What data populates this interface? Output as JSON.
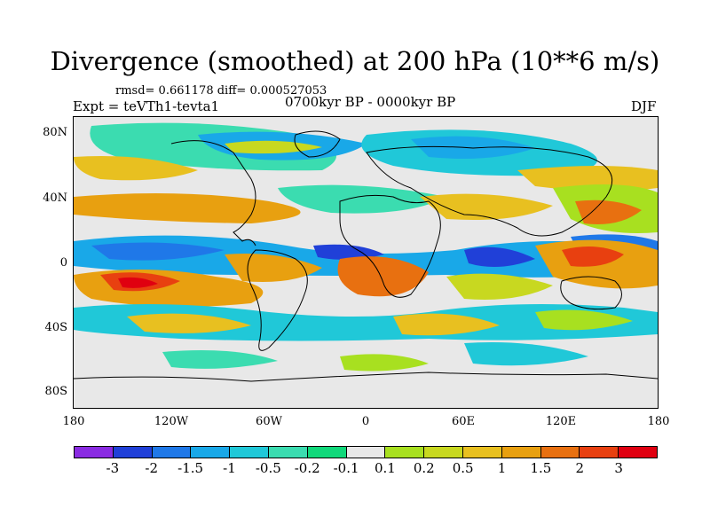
{
  "title": "Divergence (smoothed) at 200 hPa (10**6 m/s)",
  "stats_line": "rmsd= 0.661178 diff= 0.000527053",
  "experiment": "Expt = teVTh1-tevta1",
  "period": "0700kyr BP - 0000kyr BP",
  "season": "DJF",
  "y_ticks": [
    "80N",
    "40N",
    "0",
    "40S",
    "80S"
  ],
  "x_ticks": [
    "180",
    "120W",
    "60W",
    "0",
    "60E",
    "120E",
    "180"
  ],
  "colorbar": {
    "colors": [
      "#8a2be2",
      "#2040d8",
      "#1f78e8",
      "#19a8e8",
      "#20c8d8",
      "#3bdcb0",
      "#10d87a",
      "#e8e8e8",
      "#a8e020",
      "#c8d820",
      "#e8c020",
      "#e8a010",
      "#e87010",
      "#e84010",
      "#e00010"
    ],
    "labels": [
      "-3",
      "-2",
      "-1.5",
      "-1",
      "-0.5",
      "-0.2",
      "-0.1",
      "0.1",
      "0.2",
      "0.5",
      "1",
      "1.5",
      "2",
      "3"
    ]
  }
}
